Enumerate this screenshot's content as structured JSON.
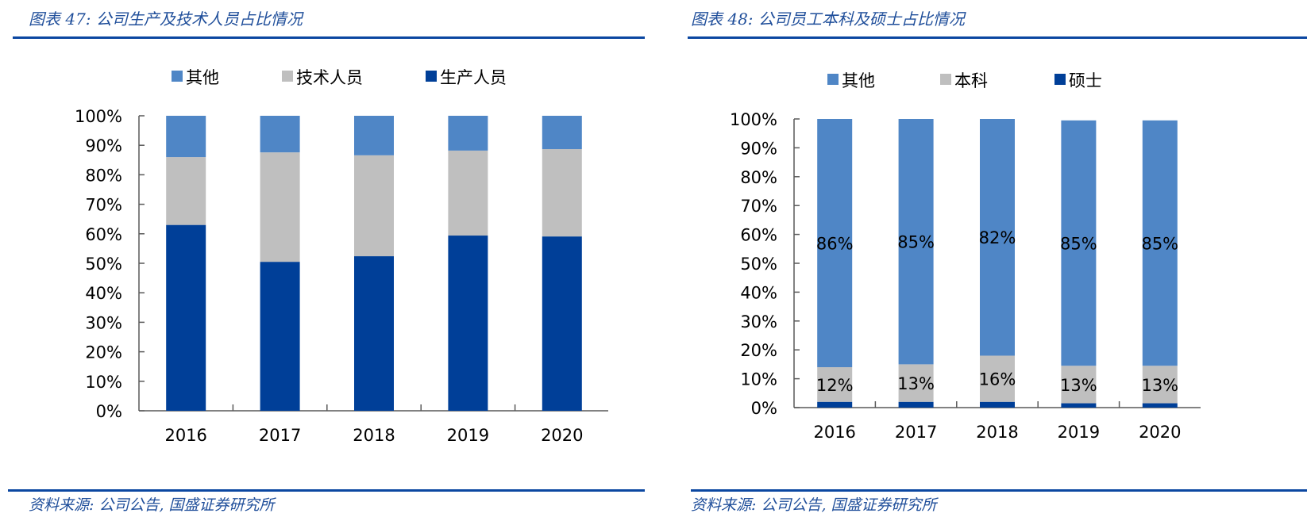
{
  "chart_data": [
    {
      "id": "fig47",
      "type": "bar",
      "stacked": true,
      "title": "图表 47: 公司生产及技术人员占比情况",
      "xlabel": "",
      "ylabel": "",
      "ylim": [
        0,
        100
      ],
      "yticks": [
        "0%",
        "10%",
        "20%",
        "30%",
        "40%",
        "50%",
        "60%",
        "70%",
        "80%",
        "90%",
        "100%"
      ],
      "categories": [
        "2016",
        "2017",
        "2018",
        "2019",
        "2020"
      ],
      "legend_position": "top",
      "legend_order": [
        "其他",
        "技术人员",
        "生产人员"
      ],
      "series": [
        {
          "name": "生产人员",
          "color": "#003f98",
          "values": [
            63.0,
            50.5,
            52.4,
            59.4,
            59.1
          ]
        },
        {
          "name": "技术人员",
          "color": "#bfbfbf",
          "values": [
            23.0,
            37.1,
            34.2,
            28.8,
            29.6
          ]
        },
        {
          "name": "其他",
          "color": "#4f86c6",
          "values": [
            14.0,
            12.4,
            13.4,
            11.8,
            11.3
          ]
        }
      ],
      "data_labels": [],
      "source": "资料来源: 公司公告, 国盛证券研究所"
    },
    {
      "id": "fig48",
      "type": "bar",
      "stacked": true,
      "title": "图表 48: 公司员工本科及硕士占比情况",
      "xlabel": "",
      "ylabel": "",
      "ylim": [
        0,
        100
      ],
      "yticks": [
        "0%",
        "10%",
        "20%",
        "30%",
        "40%",
        "50%",
        "60%",
        "70%",
        "80%",
        "90%",
        "100%"
      ],
      "categories": [
        "2016",
        "2017",
        "2018",
        "2019",
        "2020"
      ],
      "legend_position": "top",
      "legend_order": [
        "其他",
        "本科",
        "硕士"
      ],
      "series": [
        {
          "name": "硕士",
          "color": "#003f98",
          "values": [
            2.0,
            2.0,
            2.0,
            1.5,
            1.5
          ]
        },
        {
          "name": "本科",
          "color": "#bfbfbf",
          "values": [
            12,
            13,
            16,
            13,
            13
          ]
        },
        {
          "name": "其他",
          "color": "#4f86c6",
          "values": [
            86,
            85,
            82,
            85,
            85
          ]
        }
      ],
      "data_labels": [
        {
          "series": "本科",
          "labels": [
            "12%",
            "13%",
            "16%",
            "13%",
            "13%"
          ]
        },
        {
          "series": "其他",
          "labels": [
            "86%",
            "85%",
            "82%",
            "85%",
            "85%"
          ]
        }
      ],
      "source": "资料来源: 公司公告, 国盛证券研究所"
    }
  ]
}
